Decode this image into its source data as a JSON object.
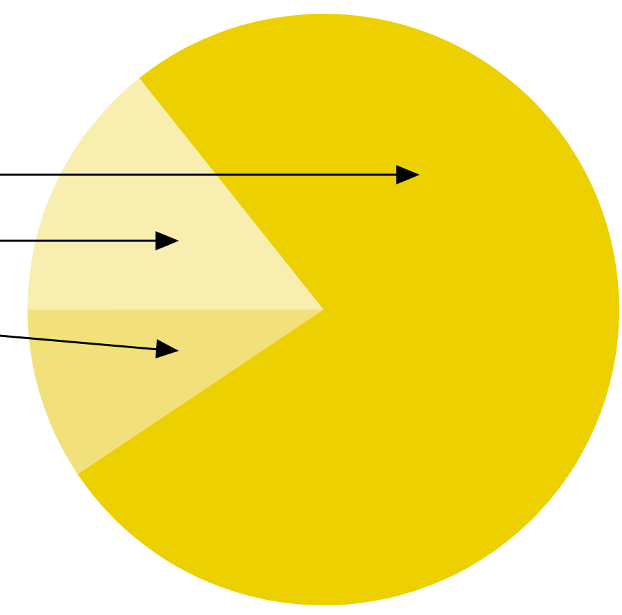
{
  "chart_data": {
    "type": "pie",
    "categories": [
      null,
      null,
      null
    ],
    "values": [
      76.3,
      9.4,
      14.3
    ],
    "colors": [
      "#ecd000",
      "#f2e07a",
      "#f7eeb0"
    ]
  }
}
